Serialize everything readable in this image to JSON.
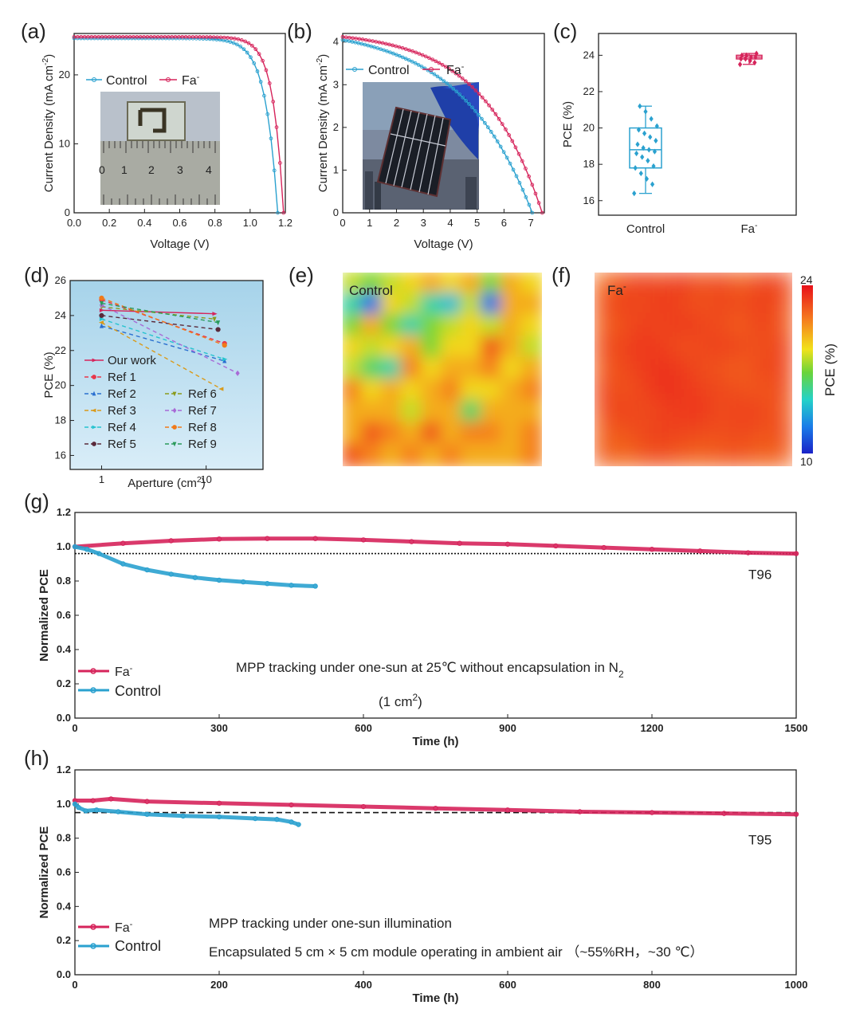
{
  "colors": {
    "fa": "#d6245b",
    "control": "#2aa1cf",
    "axis": "#222222"
  },
  "panels": {
    "a": {
      "label": "(a)"
    },
    "b": {
      "label": "(b)"
    },
    "c": {
      "label": "(c)"
    },
    "d": {
      "label": "(d)"
    },
    "e": {
      "label": "(e)"
    },
    "f": {
      "label": "(f)"
    },
    "g": {
      "label": "(g)"
    },
    "h": {
      "label": "(h)"
    }
  },
  "chart_data": [
    {
      "id": "a",
      "type": "line",
      "xlabel": "Voltage (V)",
      "ylabel": "Current Density (mA cm-2)",
      "xlim": [
        0,
        1.2
      ],
      "ylim": [
        0,
        26
      ],
      "xticks": [
        0.0,
        0.2,
        0.4,
        0.6,
        0.8,
        1.0,
        1.2
      ],
      "xtick_labels": [
        "0.0",
        "0.2",
        "0.4",
        "0.6",
        "0.8",
        "1.0",
        "1.2"
      ],
      "yticks": [
        0,
        10,
        20
      ],
      "ytick_labels": [
        "0",
        "10",
        "20"
      ],
      "legend": [
        "Control",
        "Fa-"
      ],
      "inset": "device photo on ruler",
      "series": [
        {
          "name": "Control",
          "jsc": 25.3,
          "voc": 1.157,
          "n": 0.06
        },
        {
          "name": "Fa-",
          "jsc": 25.5,
          "voc": 1.19,
          "n": 0.05
        }
      ]
    },
    {
      "id": "b",
      "type": "line",
      "xlabel": "Voltage (V)",
      "ylabel": "Current Density (mA cm-2)",
      "xlim": [
        0,
        7.5
      ],
      "ylim": [
        0,
        4.2
      ],
      "xticks": [
        0,
        1,
        2,
        3,
        4,
        5,
        6,
        7
      ],
      "xtick_labels": [
        "0",
        "1",
        "2",
        "3",
        "4",
        "5",
        "6",
        "7"
      ],
      "yticks": [
        0,
        1,
        2,
        3,
        4
      ],
      "ytick_labels": [
        "0",
        "1",
        "2",
        "3",
        "4"
      ],
      "legend": [
        "Control",
        "Fa-"
      ],
      "inset": "module photo",
      "series": [
        {
          "name": "Control",
          "jsc": 4.05,
          "voc": 7.05,
          "n": 0.38
        },
        {
          "name": "Fa-",
          "jsc": 4.12,
          "voc": 7.42,
          "n": 0.3
        }
      ]
    },
    {
      "id": "c",
      "type": "box",
      "ylabel": "PCE (%)",
      "ylim": [
        15.2,
        25.2
      ],
      "yticks": [
        16,
        18,
        20,
        22,
        24
      ],
      "ytick_labels": [
        "16",
        "18",
        "20",
        "22",
        "24"
      ],
      "categories": [
        "Control",
        "Fa-"
      ],
      "boxes": [
        {
          "name": "Control",
          "min": 16.4,
          "q1": 17.8,
          "median": 18.8,
          "q3": 20.0,
          "max": 21.2,
          "points": [
            16.4,
            16.9,
            17.2,
            17.5,
            17.8,
            17.9,
            18.2,
            18.4,
            18.6,
            18.7,
            18.8,
            18.9,
            19.1,
            19.3,
            19.5,
            19.7,
            19.9,
            20.1,
            20.5,
            20.9,
            21.2
          ]
        },
        {
          "name": "Fa-",
          "min": 23.5,
          "q1": 23.8,
          "median": 23.9,
          "q3": 24.0,
          "max": 24.1,
          "points": [
            23.5,
            23.6,
            23.7,
            23.8,
            23.8,
            23.9,
            23.9,
            24.0,
            24.0,
            24.1
          ]
        }
      ]
    },
    {
      "id": "d",
      "type": "scatter",
      "xlabel": "Aperture (cm2)",
      "ylabel": "PCE (%)",
      "xscale": "log",
      "xlim": [
        0.5,
        35
      ],
      "ylim": [
        15.2,
        26
      ],
      "xticks": [
        1,
        10
      ],
      "xtick_labels": [
        "1",
        "10"
      ],
      "yticks": [
        16,
        18,
        20,
        22,
        24,
        26
      ],
      "ytick_labels": [
        "16",
        "18",
        "20",
        "22",
        "24",
        "26"
      ],
      "series": [
        {
          "name": "Our work",
          "x": [
            1,
            12
          ],
          "y": [
            24.3,
            24.1
          ]
        },
        {
          "name": "Ref 1",
          "x": [
            1,
            15
          ],
          "y": [
            24.9,
            22.4
          ]
        },
        {
          "name": "Ref 2",
          "x": [
            1,
            15
          ],
          "y": [
            23.4,
            21.4
          ]
        },
        {
          "name": "Ref 3",
          "x": [
            1,
            14
          ],
          "y": [
            23.6,
            19.8
          ]
        },
        {
          "name": "Ref 4",
          "x": [
            1,
            15
          ],
          "y": [
            23.8,
            21.5
          ]
        },
        {
          "name": "Ref 5",
          "x": [
            1,
            13
          ],
          "y": [
            24.0,
            23.2
          ]
        },
        {
          "name": "Ref 6",
          "x": [
            1,
            12
          ],
          "y": [
            24.5,
            23.8
          ]
        },
        {
          "name": "Ref 7",
          "x": [
            1,
            20
          ],
          "y": [
            24.6,
            20.7
          ]
        },
        {
          "name": "Ref 8",
          "x": [
            1,
            15
          ],
          "y": [
            25.0,
            22.3
          ]
        },
        {
          "name": "Ref 9",
          "x": [
            1,
            13
          ],
          "y": [
            24.7,
            23.6
          ]
        }
      ]
    },
    {
      "id": "e",
      "type": "heatmap",
      "label": "Control",
      "vmin": 10,
      "vmax": 24,
      "grid": [
        [
          18,
          17,
          18,
          19,
          20,
          19,
          20,
          17,
          20,
          19
        ],
        [
          15,
          12,
          19,
          18,
          15,
          14,
          18,
          12,
          20,
          20
        ],
        [
          17,
          20,
          17,
          15,
          17,
          18,
          19,
          18,
          20,
          19
        ],
        [
          19,
          18,
          19,
          20,
          17,
          19,
          19,
          22,
          20,
          18
        ],
        [
          18,
          16,
          15,
          21,
          19,
          20,
          20,
          21,
          19,
          20
        ],
        [
          21,
          19,
          20,
          19,
          20,
          21,
          19,
          19,
          20,
          21
        ],
        [
          20,
          20,
          20,
          18,
          20,
          20,
          16,
          20,
          20,
          20
        ],
        [
          20,
          22,
          21,
          20,
          22,
          20,
          21,
          21,
          20,
          21
        ],
        [
          22,
          21,
          20,
          21,
          20,
          21,
          20,
          20,
          20,
          21
        ]
      ]
    },
    {
      "id": "f",
      "type": "heatmap",
      "label": "Fa-",
      "vmin": 10,
      "vmax": 24,
      "colorbar_label": "PCE (%)",
      "colorbar_ticks": [
        "24",
        "10"
      ],
      "grid": [
        [
          21.5,
          22.3,
          22.8,
          22.4,
          23.0,
          22.2,
          22.6,
          21.8,
          22.7,
          22.5
        ],
        [
          22.2,
          22.8,
          22.4,
          23.0,
          22.5,
          22.2,
          22.6,
          22.4,
          22.8,
          22.3
        ],
        [
          21.8,
          22.3,
          22.8,
          22.5,
          23.0,
          22.6,
          22.4,
          21.9,
          22.8,
          22.0
        ],
        [
          22.4,
          22.6,
          23.0,
          22.8,
          22.3,
          22.5,
          22.8,
          22.5,
          22.2,
          22.7
        ],
        [
          21.9,
          22.5,
          22.8,
          23.1,
          22.9,
          22.4,
          22.2,
          21.9,
          22.6,
          22.5
        ],
        [
          22.6,
          22.2,
          22.6,
          23.2,
          23.0,
          22.7,
          22.5,
          22.3,
          22.1,
          22.4
        ],
        [
          22.3,
          22.8,
          22.4,
          22.7,
          22.9,
          23.0,
          22.4,
          22.8,
          22.6,
          22.1
        ],
        [
          21.8,
          22.2,
          22.5,
          22.8,
          22.6,
          22.5,
          22.3,
          22.6,
          22.2,
          22.4
        ],
        [
          22.0,
          21.6,
          22.2,
          22.4,
          22.0,
          21.8,
          22.1,
          22.2,
          21.8,
          21.9
        ]
      ]
    },
    {
      "id": "g",
      "type": "line",
      "xlabel": "Time (h)",
      "ylabel": "Normalized PCE",
      "xlim": [
        0,
        1500
      ],
      "ylim": [
        0,
        1.2
      ],
      "xticks": [
        0,
        300,
        600,
        900,
        1200,
        1500
      ],
      "xtick_labels": [
        "0",
        "300",
        "600",
        "900",
        "1200",
        "1500"
      ],
      "yticks": [
        0,
        0.2,
        0.4,
        0.6,
        0.8,
        1.0,
        1.2
      ],
      "ytick_labels": [
        "0.0",
        "0.2",
        "0.4",
        "0.6",
        "0.8",
        "1.0",
        "1.2"
      ],
      "reference_line": 0.96,
      "reference_label": "T96",
      "annotation": "MPP tracking under one-sun at 25℃ without encapsulation in N2",
      "annotation_sub": "(1 cm2)",
      "series": [
        {
          "name": "Fa-",
          "x": [
            0,
            100,
            200,
            300,
            400,
            500,
            600,
            700,
            800,
            900,
            1000,
            1100,
            1200,
            1300,
            1400,
            1500
          ],
          "y": [
            1.0,
            1.02,
            1.035,
            1.045,
            1.048,
            1.048,
            1.04,
            1.03,
            1.02,
            1.015,
            1.005,
            0.995,
            0.985,
            0.975,
            0.965,
            0.96
          ]
        },
        {
          "name": "Control",
          "x": [
            0,
            25,
            50,
            100,
            150,
            200,
            250,
            300,
            350,
            400,
            450,
            500
          ],
          "y": [
            1.0,
            0.985,
            0.96,
            0.9,
            0.865,
            0.84,
            0.82,
            0.805,
            0.795,
            0.785,
            0.775,
            0.77
          ]
        }
      ]
    },
    {
      "id": "h",
      "type": "line",
      "xlabel": "Time (h)",
      "ylabel": "Normalized PCE",
      "xlim": [
        0,
        1000
      ],
      "ylim": [
        0,
        1.2
      ],
      "xticks": [
        0,
        200,
        400,
        600,
        800,
        1000
      ],
      "xtick_labels": [
        "0",
        "200",
        "400",
        "600",
        "800",
        "1000"
      ],
      "yticks": [
        0,
        0.2,
        0.4,
        0.6,
        0.8,
        1.0,
        1.2
      ],
      "ytick_labels": [
        "0.0",
        "0.2",
        "0.4",
        "0.6",
        "0.8",
        "1.0",
        "1.2"
      ],
      "reference_line": 0.95,
      "reference_label": "T95",
      "annotation": "MPP tracking under one-sun illumination",
      "annotation2": "Encapsulated 5 cm × 5 cm module operating in ambient air （~55%RH，~30 ℃）",
      "series": [
        {
          "name": "Fa-",
          "x": [
            0,
            25,
            50,
            100,
            200,
            300,
            400,
            500,
            600,
            700,
            800,
            900,
            1000
          ],
          "y": [
            1.02,
            1.02,
            1.03,
            1.015,
            1.005,
            0.995,
            0.985,
            0.975,
            0.965,
            0.955,
            0.95,
            0.945,
            0.94
          ]
        },
        {
          "name": "Control",
          "x": [
            0,
            5,
            15,
            30,
            60,
            100,
            150,
            200,
            250,
            280,
            300,
            310
          ],
          "y": [
            1.0,
            0.98,
            0.96,
            0.965,
            0.955,
            0.94,
            0.93,
            0.925,
            0.915,
            0.91,
            0.895,
            0.88
          ]
        }
      ]
    }
  ]
}
